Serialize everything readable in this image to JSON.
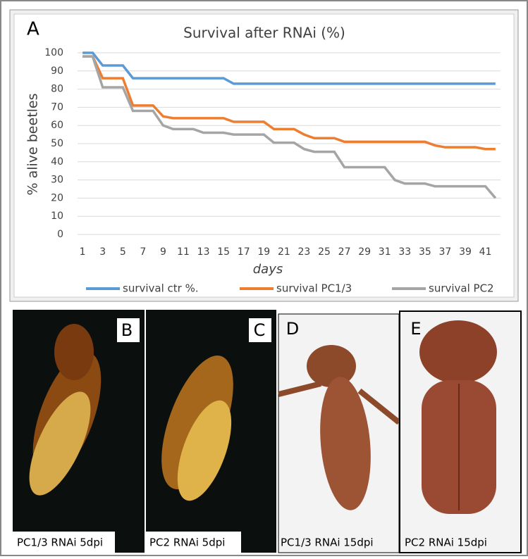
{
  "panel_label": "A",
  "chart_data": {
    "type": "line",
    "title": "Survival after RNAi (%)",
    "x_label": "days",
    "y_label": "% alive beetles",
    "x": [
      1,
      2,
      3,
      4,
      5,
      6,
      7,
      8,
      9,
      10,
      11,
      12,
      13,
      14,
      15,
      16,
      17,
      18,
      19,
      20,
      21,
      22,
      23,
      24,
      25,
      26,
      27,
      28,
      29,
      30,
      31,
      32,
      33,
      34,
      35,
      36,
      37,
      38,
      39,
      40,
      41,
      42
    ],
    "series": [
      {
        "name": "survival ctr %.",
        "color": "#5b9bd5",
        "values": [
          100,
          100,
          93,
          93,
          93,
          86,
          86,
          86,
          86,
          86,
          86,
          86,
          86,
          86,
          86,
          83,
          83,
          83,
          83,
          83,
          83,
          83,
          83,
          83,
          83,
          83,
          83,
          83,
          83,
          83,
          83,
          83,
          83,
          83,
          83,
          83,
          83,
          83,
          83,
          83,
          83,
          83
        ]
      },
      {
        "name": "survival PC1/3",
        "color": "#ed7d31",
        "values": [
          98,
          98,
          86,
          86,
          86,
          71,
          71,
          71,
          65,
          64,
          64,
          64,
          64,
          64,
          64,
          62,
          62,
          62,
          62,
          58,
          58,
          58,
          55,
          53,
          53,
          53,
          51,
          51,
          51,
          51,
          51,
          51,
          51,
          51,
          51,
          49,
          48,
          48,
          48,
          48,
          47,
          47
        ]
      },
      {
        "name": "survival PC2",
        "color": "#a5a5a5",
        "values": [
          98,
          98,
          81,
          81,
          81,
          68,
          68,
          68,
          60,
          58,
          58,
          58,
          56,
          56,
          56,
          55,
          55,
          55,
          55,
          50.5,
          50.5,
          50.5,
          47,
          45.5,
          45.5,
          45.5,
          37,
          37,
          37,
          37,
          37,
          30,
          28,
          28,
          28,
          26.5,
          26.5,
          26.5,
          26.5,
          26.5,
          26.5,
          20
        ]
      }
    ],
    "xlim": [
      0.5,
      42.5
    ],
    "xticks": [
      1,
      3,
      5,
      7,
      9,
      11,
      13,
      15,
      17,
      19,
      21,
      23,
      25,
      27,
      29,
      31,
      33,
      35,
      37,
      39,
      41
    ],
    "ylim": [
      0,
      100
    ],
    "yticks": [
      0,
      10,
      20,
      30,
      40,
      50,
      60,
      70,
      80,
      90,
      100
    ],
    "grid": true,
    "legend": "bottom"
  },
  "photos": [
    {
      "label": "B",
      "caption": "PC1/3 RNAi 5dpi"
    },
    {
      "label": "C",
      "caption": "PC2 RNAi 5dpi"
    },
    {
      "label": "D",
      "caption": "PC1/3 RNAi 15dpi"
    },
    {
      "label": "E",
      "caption": "PC2 RNAi 15dpi"
    }
  ]
}
